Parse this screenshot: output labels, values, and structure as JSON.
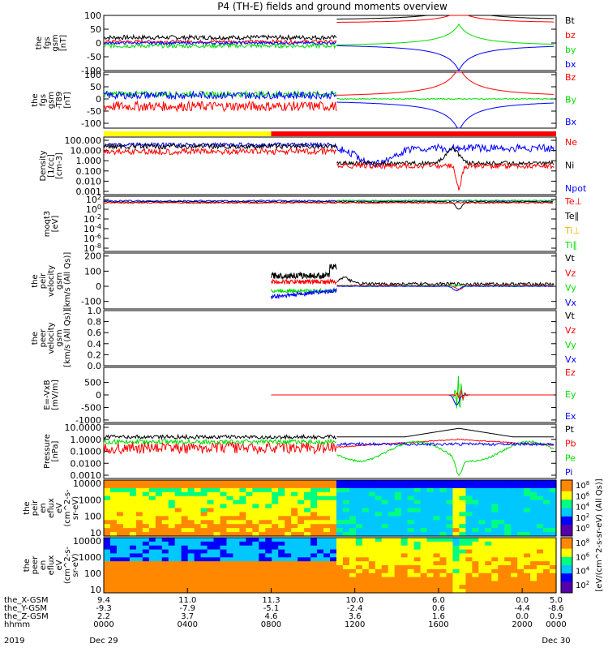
{
  "title": "P4 (TH-E) fields and ground moments overview",
  "chart_data": [
    {
      "type": "line",
      "panel_id": "fgs_gsm",
      "ylabel": [
        "the",
        "fgs",
        "gsm",
        "[nT]"
      ],
      "yticks": [
        -100,
        -50,
        0,
        50,
        100
      ],
      "ylim": [
        -100,
        100
      ],
      "legend": [
        {
          "label": "Bt",
          "color": "#000000"
        },
        {
          "label": "bz",
          "color": "#ff0000"
        },
        {
          "label": "by",
          "color": "#00dd00"
        },
        {
          "label": "bx",
          "color": "#0000ff"
        }
      ]
    },
    {
      "type": "line",
      "panel_id": "fgs_gsm_t89",
      "ylabel": [
        "the",
        "fgs",
        "gsm",
        "-T89",
        "[nT]"
      ],
      "yticks": [
        -100,
        -50,
        0,
        50,
        100
      ],
      "ylim": [
        -120,
        110
      ],
      "legend": [
        {
          "label": "Bz",
          "color": "#ff0000"
        },
        {
          "label": "By",
          "color": "#00dd00"
        },
        {
          "label": "Bx",
          "color": "#0000ff"
        }
      ]
    },
    {
      "type": "line",
      "panel_id": "density",
      "log_scale": true,
      "ylabel": [
        "Density",
        "[1/cc]",
        "[cm-3]"
      ],
      "yticks": [
        "100.000",
        "10.000",
        "1.000",
        "0.100",
        "0.010",
        "0.001"
      ],
      "legend": [
        {
          "label": "Ne",
          "color": "#ff0000"
        },
        {
          "label": "Ni",
          "color": "#000000"
        },
        {
          "label": "Npot",
          "color": "#0000ff"
        }
      ]
    },
    {
      "type": "line",
      "panel_id": "temperature",
      "log_scale": true,
      "ylabel": [
        "moqt3",
        "[eV]"
      ],
      "yticks": [
        "10^2",
        "10^0",
        "10^-2",
        "10^-4",
        "10^-6",
        "10^-8"
      ],
      "legend": [
        {
          "label": "Te⊥",
          "color": "#ff0000"
        },
        {
          "label": "Te∥",
          "color": "#000000"
        },
        {
          "label": "Ti⊥",
          "color": "#e8b400"
        },
        {
          "label": "Ti∥",
          "color": "#00dd00"
        }
      ]
    },
    {
      "type": "line",
      "panel_id": "peir_velocity",
      "ylabel": [
        "the",
        "peir",
        "velocity",
        "gsm",
        "[km/s (All Qs)]"
      ],
      "yticks": [
        -100,
        0,
        100,
        200
      ],
      "ylim": [
        -150,
        220
      ],
      "legend": [
        {
          "label": "Vt",
          "color": "#000000"
        },
        {
          "label": "Vz",
          "color": "#ff0000"
        },
        {
          "label": "Vy",
          "color": "#00dd00"
        },
        {
          "label": "Vx",
          "color": "#0000ff"
        }
      ]
    },
    {
      "type": "line",
      "panel_id": "peer_velocity",
      "ylabel": [
        "the",
        "peer",
        "velocity",
        "gsm",
        "[km/s (All Qs)]"
      ],
      "yticks": [
        "0.0",
        "0.2",
        "0.4",
        "0.6",
        "0.8",
        "1.0"
      ],
      "ylim": [
        0,
        1
      ],
      "legend": [
        {
          "label": "Vt",
          "color": "#000000"
        },
        {
          "label": "Vz",
          "color": "#ff0000"
        },
        {
          "label": "Vy",
          "color": "#00dd00"
        },
        {
          "label": "Vx",
          "color": "#0000ff"
        }
      ]
    },
    {
      "type": "line",
      "panel_id": "e_field",
      "ylabel": [
        "E=-VxB",
        "[mV/m]"
      ],
      "yticks": [
        -1000,
        -500,
        0,
        500
      ],
      "ylim": [
        -1100,
        1100
      ],
      "legend": [
        {
          "label": "Ez",
          "color": "#ff0000"
        },
        {
          "label": "Ey",
          "color": "#00dd00"
        },
        {
          "label": "Ex",
          "color": "#0000ff"
        }
      ]
    },
    {
      "type": "line",
      "panel_id": "pressure",
      "log_scale": true,
      "ylabel": [
        "Pressure",
        "[nPa]"
      ],
      "yticks": [
        "10.0000",
        "1.0000",
        "0.1000",
        "0.0100",
        "0.0010"
      ],
      "legend": [
        {
          "label": "Pt",
          "color": "#000000"
        },
        {
          "label": "Pb",
          "color": "#ff0000"
        },
        {
          "label": "Pe",
          "color": "#00dd00"
        },
        {
          "label": "Pi",
          "color": "#0000ff"
        }
      ]
    },
    {
      "type": "heatmap",
      "panel_id": "peir_spectrogram",
      "ylabel": [
        "the",
        "peir",
        "en",
        "eflux",
        "eV",
        "(cm^2-s-",
        "sr-eV)"
      ],
      "yticks": [
        "10000",
        "1000",
        "100",
        "10"
      ],
      "colorbar_ticks": [
        "10^8",
        "10^6",
        "10^4",
        "10^2",
        "10^0"
      ],
      "colorbar_label": "[eV/(cm^2-s-sr-eV)]"
    },
    {
      "type": "heatmap",
      "panel_id": "peer_spectrogram",
      "ylabel": [
        "the",
        "peer",
        "en",
        "eflux",
        "eV",
        "(cm^2-s-",
        "sr-eV)"
      ],
      "yticks": [
        "10000",
        "1000",
        "100",
        "10"
      ],
      "colorbar_ticks": [
        "10^8",
        "10^6",
        "10^4",
        "10^2"
      ],
      "colorbar_label": "[eV/(cm^2-s-sr-eV) (All Qs)]"
    }
  ],
  "xaxis": {
    "rows": [
      {
        "label": "the_X-GSM",
        "values": [
          "9.4",
          "11.0",
          "11.3",
          "10.0",
          "6.0",
          "0.0",
          "5.0"
        ]
      },
      {
        "label": "the_Y-GSM",
        "values": [
          "-9.3",
          "-7.9",
          "-5.1",
          "-2.4",
          "0.6",
          "-4.4",
          "-8.6"
        ]
      },
      {
        "label": "the_Z-GSM",
        "values": [
          "2.2",
          "3.7",
          "4.6",
          "3.6",
          "1.6",
          "0.0",
          "0.9"
        ]
      },
      {
        "label": "hhmm",
        "values": [
          "0000",
          "0400",
          "0800",
          "1200",
          "1600",
          "2000",
          "0000"
        ]
      }
    ],
    "date_row": {
      "label": "2019",
      "start": "Dec 29",
      "end": "Dec 30"
    }
  },
  "colors": {
    "black": "#000000",
    "red": "#ff0000",
    "green": "#00dd00",
    "blue": "#0000ff",
    "yellow": "#ffff00"
  }
}
